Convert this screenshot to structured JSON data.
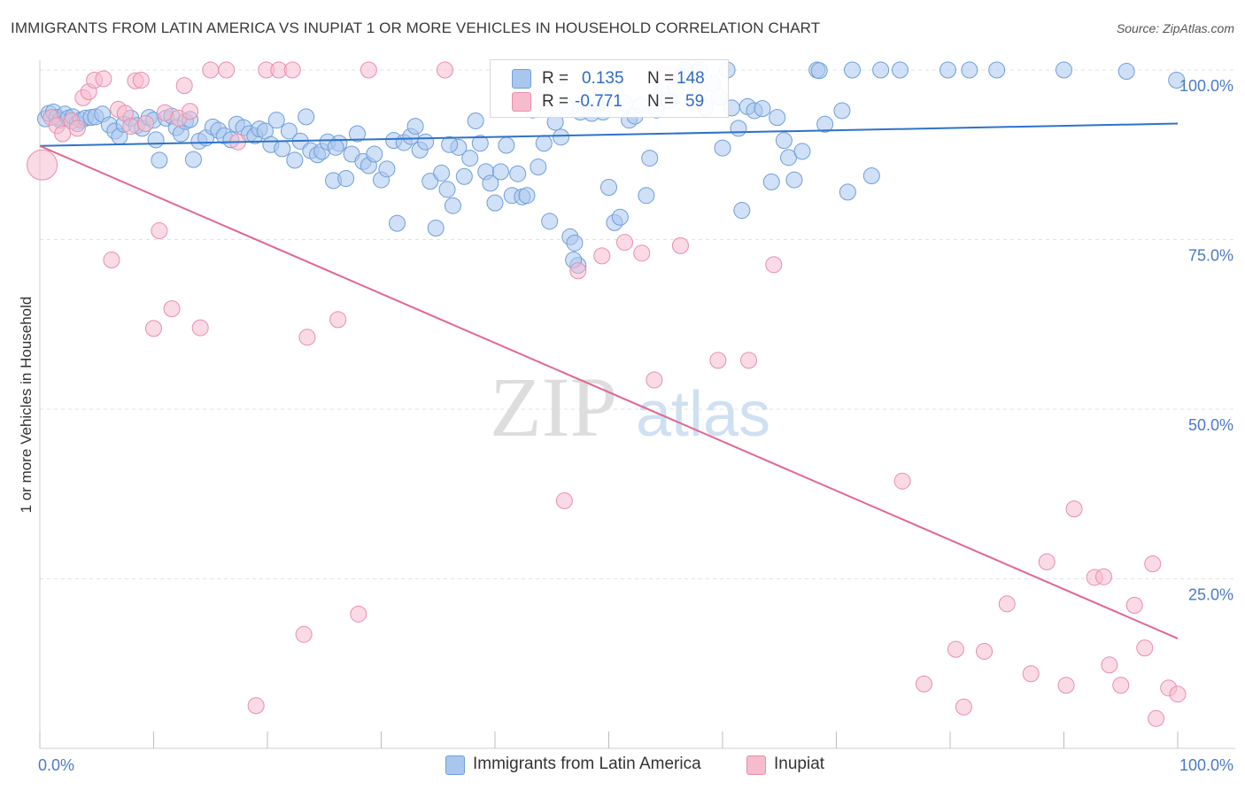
{
  "title": "IMMIGRANTS FROM LATIN AMERICA VS INUPIAT 1 OR MORE VEHICLES IN HOUSEHOLD CORRELATION CHART",
  "source": "Source: ZipAtlas.com",
  "watermark": {
    "zip": "ZIP",
    "atlas": "atlas"
  },
  "colors": {
    "blue_fill": "#a9c7ee",
    "blue_stroke": "#6f9fd8",
    "blue_line": "#2f72c9",
    "pink_fill": "#f6bccd",
    "pink_stroke": "#e88fab",
    "pink_line": "#e06890",
    "blue_text": "#2f6cc2",
    "axis_text": "#4a7ac7"
  },
  "legend": {
    "r_label": "R =",
    "n_label": "N =",
    "series": [
      {
        "r": "0.135",
        "n": "148"
      },
      {
        "r": "-0.771",
        "n": "59"
      }
    ]
  },
  "chart_data": {
    "type": "scatter",
    "title": "IMMIGRANTS FROM LATIN AMERICA VS INUPIAT 1 OR MORE VEHICLES IN HOUSEHOLD CORRELATION CHART",
    "xlabel": "",
    "ylabel": "1 or more Vehicles in Household",
    "xlim": [
      0,
      100
    ],
    "ylim": [
      0,
      100
    ],
    "x_tick_labels": [
      "0.0%",
      "100.0%"
    ],
    "y_tick_labels": [
      "100.0%",
      "75.0%",
      "50.0%",
      "25.0%"
    ],
    "y_ticks": [
      100,
      75,
      50,
      25
    ],
    "grid": true,
    "legend_position": "top-center",
    "series": [
      {
        "name": "Immigrants from Latin America",
        "color": "#a9c7ee",
        "trend": {
          "x0": 0,
          "y0": 88.8,
          "x1": 100,
          "y1": 92.1
        },
        "points": [
          [
            0.5,
            92.8
          ],
          [
            0.8,
            93.6
          ],
          [
            1.2,
            93.8
          ],
          [
            1.5,
            93.0
          ],
          [
            1.8,
            92.6
          ],
          [
            2.2,
            93.5
          ],
          [
            2.5,
            92.9
          ],
          [
            2.9,
            93.1
          ],
          [
            3.3,
            92.1
          ],
          [
            3.6,
            92.6
          ],
          [
            4.0,
            92.9
          ],
          [
            4.5,
            93.0
          ],
          [
            4.9,
            93.1
          ],
          [
            5.5,
            93.5
          ],
          [
            6.1,
            91.9
          ],
          [
            6.6,
            91.0
          ],
          [
            7.0,
            90.2
          ],
          [
            7.4,
            92.0
          ],
          [
            8.0,
            92.9
          ],
          [
            8.5,
            91.8
          ],
          [
            9.0,
            91.4
          ],
          [
            9.6,
            93.0
          ],
          [
            10.0,
            92.6
          ],
          [
            10.2,
            89.7
          ],
          [
            10.5,
            86.7
          ],
          [
            11.1,
            92.9
          ],
          [
            11.6,
            93.2
          ],
          [
            12.0,
            91.5
          ],
          [
            12.4,
            90.6
          ],
          [
            12.8,
            92.4
          ],
          [
            13.2,
            92.7
          ],
          [
            13.5,
            86.8
          ],
          [
            14.0,
            89.5
          ],
          [
            14.6,
            90.0
          ],
          [
            15.2,
            91.6
          ],
          [
            15.7,
            91.1
          ],
          [
            16.2,
            90.3
          ],
          [
            16.8,
            89.7
          ],
          [
            17.3,
            92.0
          ],
          [
            17.9,
            91.5
          ],
          [
            18.4,
            90.6
          ],
          [
            18.9,
            90.3
          ],
          [
            19.3,
            91.3
          ],
          [
            19.8,
            91.0
          ],
          [
            20.3,
            89.0
          ],
          [
            20.8,
            92.6
          ],
          [
            21.3,
            88.4
          ],
          [
            21.9,
            91.0
          ],
          [
            22.4,
            86.7
          ],
          [
            22.9,
            89.5
          ],
          [
            23.4,
            93.1
          ],
          [
            23.8,
            88.1
          ],
          [
            24.4,
            87.5
          ],
          [
            24.8,
            88.0
          ],
          [
            25.3,
            89.4
          ],
          [
            25.8,
            83.7
          ],
          [
            26.3,
            89.2
          ],
          [
            26.9,
            84.0
          ],
          [
            27.4,
            87.6
          ],
          [
            27.9,
            90.6
          ],
          [
            28.4,
            86.5
          ],
          [
            28.9,
            85.9
          ],
          [
            29.4,
            87.6
          ],
          [
            30.0,
            83.8
          ],
          [
            30.5,
            85.4
          ],
          [
            31.1,
            89.6
          ],
          [
            31.4,
            77.4
          ],
          [
            32.0,
            89.3
          ],
          [
            32.6,
            90.2
          ],
          [
            33.0,
            91.7
          ],
          [
            33.4,
            88.2
          ],
          [
            33.9,
            89.4
          ],
          [
            34.3,
            83.6
          ],
          [
            34.8,
            76.7
          ],
          [
            35.3,
            84.8
          ],
          [
            35.8,
            82.4
          ],
          [
            36.3,
            80.0
          ],
          [
            36.8,
            88.6
          ],
          [
            37.3,
            84.3
          ],
          [
            37.8,
            87.0
          ],
          [
            38.3,
            92.5
          ],
          [
            38.7,
            89.2
          ],
          [
            39.2,
            85.0
          ],
          [
            39.6,
            83.3
          ],
          [
            40.0,
            80.4
          ],
          [
            40.5,
            85.0
          ],
          [
            41.0,
            88.9
          ],
          [
            41.5,
            81.5
          ],
          [
            42.0,
            84.7
          ],
          [
            42.4,
            81.3
          ],
          [
            42.8,
            81.5
          ],
          [
            43.3,
            94.1
          ],
          [
            43.8,
            85.7
          ],
          [
            44.3,
            89.2
          ],
          [
            44.8,
            77.7
          ],
          [
            45.3,
            92.3
          ],
          [
            45.8,
            90.1
          ],
          [
            46.3,
            94.5
          ],
          [
            46.6,
            75.4
          ],
          [
            47.0,
            74.5
          ],
          [
            47.5,
            93.8
          ],
          [
            48.0,
            94.2
          ],
          [
            48.5,
            93.6
          ],
          [
            49.0,
            95.0
          ],
          [
            49.5,
            93.8
          ],
          [
            50.0,
            82.7
          ],
          [
            50.5,
            77.5
          ],
          [
            51.0,
            78.3
          ],
          [
            51.4,
            95.1
          ],
          [
            51.8,
            92.6
          ],
          [
            52.3,
            93.2
          ],
          [
            52.8,
            94.8
          ],
          [
            53.3,
            81.5
          ],
          [
            53.6,
            87.0
          ],
          [
            54.2,
            94.1
          ],
          [
            54.7,
            96.7
          ],
          [
            55.3,
            95.5
          ],
          [
            55.9,
            97.3
          ],
          [
            56.4,
            99.1
          ],
          [
            56.7,
            100.0
          ],
          [
            57.4,
            95.5
          ],
          [
            58.0,
            100.0
          ],
          [
            58.5,
            94.4
          ],
          [
            59.1,
            98.0
          ],
          [
            59.7,
            96.0
          ],
          [
            60.0,
            88.5
          ],
          [
            60.4,
            100.0
          ],
          [
            60.8,
            94.4
          ],
          [
            61.4,
            91.4
          ],
          [
            61.7,
            79.3
          ],
          [
            62.2,
            94.6
          ],
          [
            62.8,
            94.0
          ],
          [
            63.5,
            94.3
          ],
          [
            64.3,
            83.5
          ],
          [
            64.8,
            93.0
          ],
          [
            65.4,
            89.6
          ],
          [
            65.8,
            87.1
          ],
          [
            66.3,
            83.8
          ],
          [
            68.3,
            100.0
          ],
          [
            68.5,
            99.9
          ],
          [
            71.4,
            100.0
          ],
          [
            73.1,
            84.4
          ],
          [
            73.9,
            100.0
          ],
          [
            75.6,
            100.0
          ],
          [
            79.8,
            100.0
          ],
          [
            81.7,
            100.0
          ],
          [
            84.1,
            100.0
          ],
          [
            90.0,
            100.0
          ],
          [
            95.5,
            99.8
          ],
          [
            99.9,
            98.5
          ],
          [
            70.5,
            94.0
          ],
          [
            67.0,
            88.0
          ],
          [
            71.0,
            82.0
          ],
          [
            69.0,
            92.0
          ],
          [
            36.0,
            89.0
          ],
          [
            47.3,
            71.2
          ],
          [
            46.9,
            72.0
          ],
          [
            26.0,
            88.6
          ]
        ]
      },
      {
        "name": "Inupiat",
        "color": "#f6bccd",
        "trend": {
          "x0": 0,
          "y0": 88.8,
          "x1": 100,
          "y1": 16.2
        },
        "points": [
          [
            0.2,
            86.0
          ],
          [
            1.0,
            93.0
          ],
          [
            1.5,
            91.8
          ],
          [
            2.0,
            90.6
          ],
          [
            2.8,
            92.5
          ],
          [
            3.3,
            91.4
          ],
          [
            3.8,
            95.9
          ],
          [
            4.3,
            96.8
          ],
          [
            4.8,
            98.5
          ],
          [
            5.6,
            98.7
          ],
          [
            6.3,
            72.0
          ],
          [
            6.9,
            94.2
          ],
          [
            7.5,
            93.6
          ],
          [
            8.0,
            91.7
          ],
          [
            8.4,
            98.4
          ],
          [
            8.9,
            98.5
          ],
          [
            9.3,
            92.1
          ],
          [
            10.0,
            61.9
          ],
          [
            10.5,
            76.3
          ],
          [
            11.0,
            93.7
          ],
          [
            11.6,
            64.8
          ],
          [
            12.2,
            92.9
          ],
          [
            12.7,
            97.7
          ],
          [
            13.2,
            93.9
          ],
          [
            14.1,
            62.0
          ],
          [
            15.0,
            100.0
          ],
          [
            16.4,
            100.0
          ],
          [
            17.4,
            89.4
          ],
          [
            19.0,
            6.3
          ],
          [
            19.9,
            100.0
          ],
          [
            21.0,
            100.0
          ],
          [
            22.2,
            100.0
          ],
          [
            23.2,
            16.8
          ],
          [
            23.5,
            60.6
          ],
          [
            26.2,
            63.2
          ],
          [
            28.0,
            19.8
          ],
          [
            28.9,
            100.0
          ],
          [
            35.6,
            100.0
          ],
          [
            46.1,
            36.5
          ],
          [
            47.3,
            70.4
          ],
          [
            49.4,
            72.6
          ],
          [
            51.4,
            74.6
          ],
          [
            52.9,
            73.0
          ],
          [
            54.0,
            54.3
          ],
          [
            55.4,
            99.2
          ],
          [
            56.3,
            74.1
          ],
          [
            59.6,
            57.2
          ],
          [
            62.3,
            57.2
          ],
          [
            64.5,
            71.3
          ],
          [
            75.8,
            39.4
          ],
          [
            77.7,
            9.5
          ],
          [
            80.5,
            14.6
          ],
          [
            81.2,
            6.1
          ],
          [
            83.0,
            14.3
          ],
          [
            85.0,
            21.3
          ],
          [
            87.1,
            11.0
          ],
          [
            88.5,
            27.5
          ],
          [
            90.2,
            9.3
          ],
          [
            90.9,
            35.3
          ],
          [
            92.7,
            25.2
          ],
          [
            93.5,
            25.3
          ],
          [
            94.0,
            12.3
          ],
          [
            95.0,
            9.3
          ],
          [
            96.2,
            21.1
          ],
          [
            97.1,
            14.8
          ],
          [
            98.1,
            4.4
          ],
          [
            99.2,
            8.9
          ],
          [
            100.0,
            8.0
          ],
          [
            97.8,
            27.2
          ]
        ]
      }
    ]
  },
  "bottom_legend": [
    "Immigrants from Latin America",
    "Inupiat"
  ],
  "axis": {
    "x_left": "0.0%",
    "x_right": "100.0%"
  }
}
